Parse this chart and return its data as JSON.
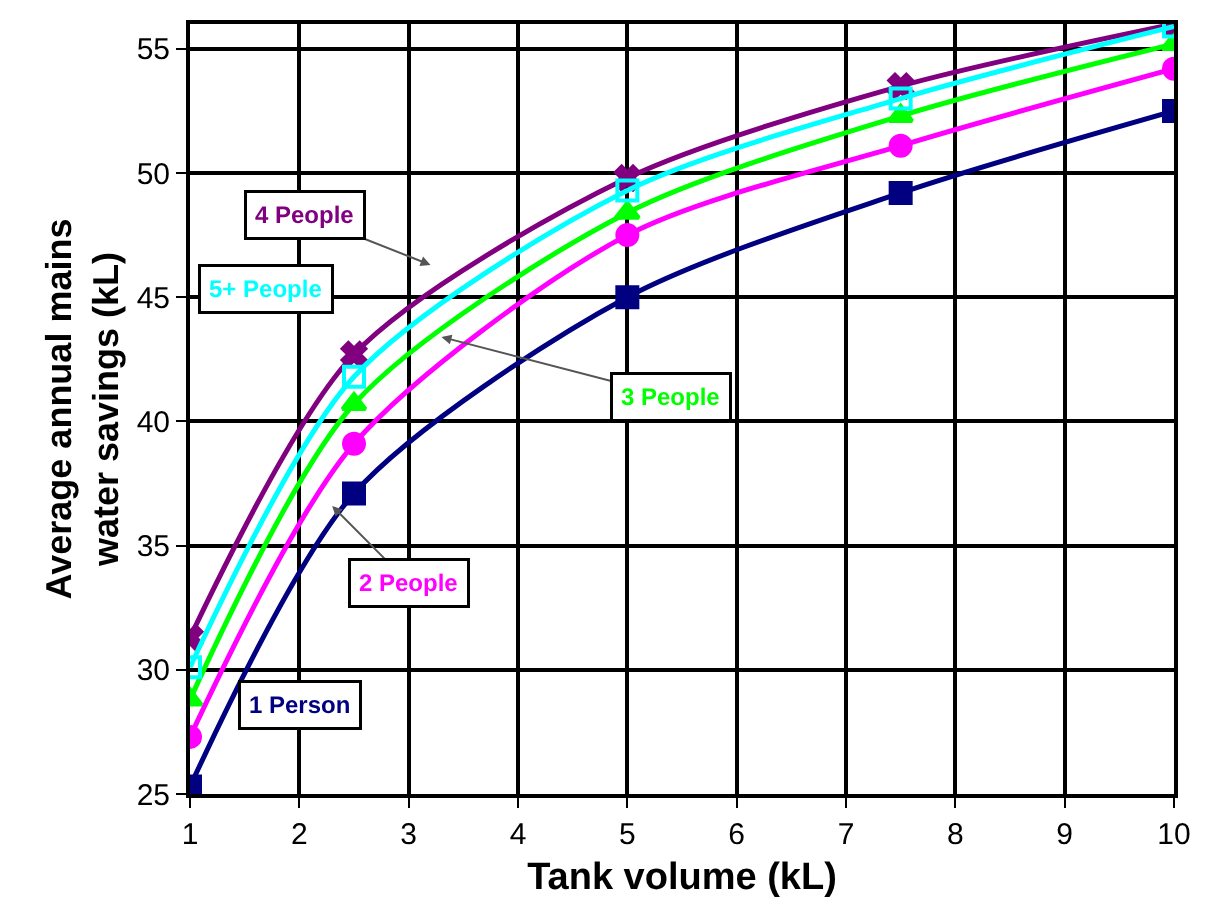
{
  "chart_data": {
    "type": "line",
    "xlabel": "Tank volume (kL)",
    "ylabel": "Average annual mains\nwater savings (kL)",
    "x": [
      1,
      2.5,
      5,
      7.5,
      10
    ],
    "xlim": [
      1,
      10
    ],
    "xticks": [
      1,
      2,
      3,
      4,
      5,
      6,
      7,
      8,
      9,
      10
    ],
    "ylim": [
      25,
      56
    ],
    "yticks": [
      25,
      30,
      35,
      40,
      45,
      50,
      55
    ],
    "grid": true,
    "legend": false,
    "line_style": "solid",
    "series": [
      {
        "name": "1 Person",
        "color": "#000080",
        "marker": "square",
        "values": [
          25.3,
          37.1,
          45.0,
          49.2,
          52.5
        ]
      },
      {
        "name": "2 People",
        "color": "#ff00ff",
        "marker": "circle",
        "values": [
          27.3,
          39.1,
          47.5,
          51.1,
          54.2
        ]
      },
      {
        "name": "3 People",
        "color": "#00ff00",
        "marker": "triangle",
        "values": [
          28.8,
          40.7,
          48.4,
          52.3,
          55.2
        ]
      },
      {
        "name": "4 People",
        "color": "#800080",
        "marker": "cross",
        "values": [
          31.3,
          42.7,
          49.8,
          53.5,
          56.0
        ]
      },
      {
        "name": "5+ People",
        "color": "#00ffff",
        "marker": "square-open",
        "values": [
          30.1,
          41.8,
          49.3,
          53.0,
          55.9
        ]
      }
    ]
  }
}
